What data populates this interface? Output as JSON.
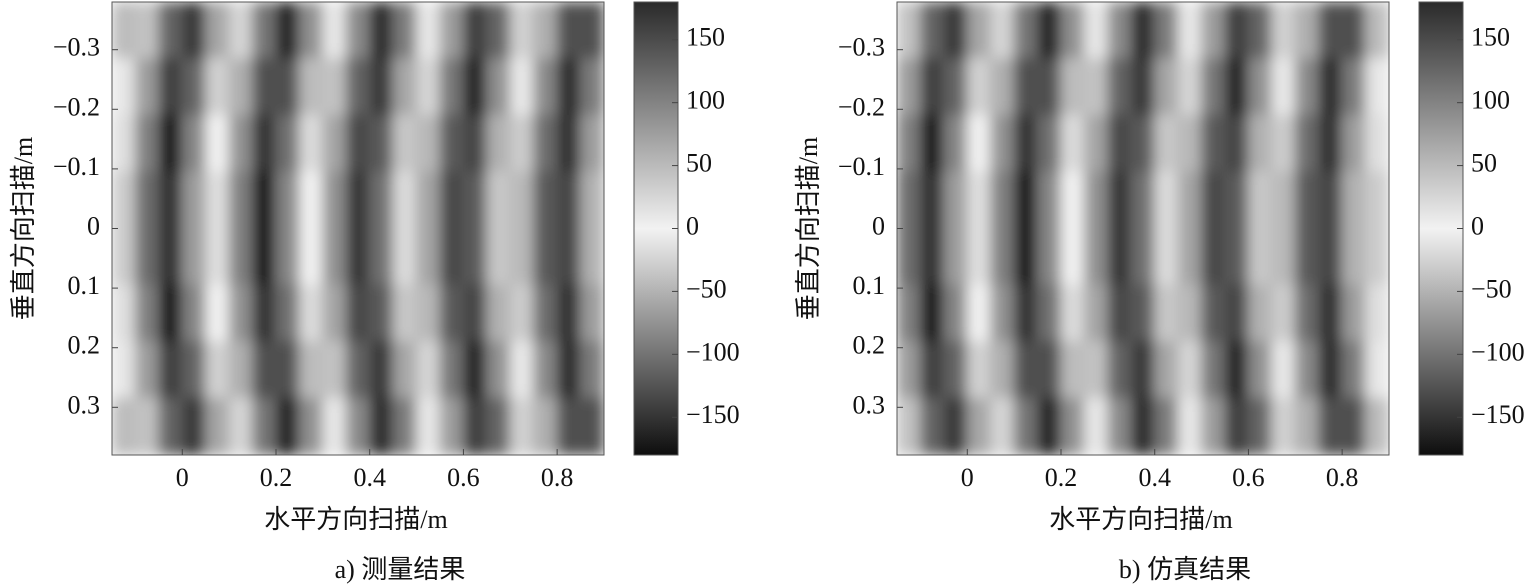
{
  "chart_data": [
    {
      "type": "heatmap",
      "caption": "a) 测量结果",
      "x_label": "水平方向扫描/m",
      "y_label": "垂直方向扫描/m",
      "x": [
        -0.125,
        -0.075,
        -0.025,
        0.025,
        0.075,
        0.125,
        0.175,
        0.225,
        0.275,
        0.325,
        0.375,
        0.425,
        0.475,
        0.525,
        0.575,
        0.625,
        0.675,
        0.725,
        0.775,
        0.825,
        0.875
      ],
      "y": [
        -0.3325,
        -0.2375,
        -0.1425,
        -0.0475,
        0.0475,
        0.1425,
        0.2375,
        0.3325
      ],
      "z": [
        [
          -43,
          43,
          129,
          -146,
          -60,
          26,
          112,
          -163,
          -77,
          9,
          94,
          180,
          -94,
          -8,
          77,
          163,
          -111,
          -26,
          60,
          146,
          -128
        ],
        [
          -9,
          77,
          163,
          -112,
          -26,
          60,
          146,
          -129,
          -43,
          43,
          128,
          -146,
          -60,
          26,
          111,
          -163,
          -77,
          8,
          94,
          180,
          -94
        ],
        [
          17,
          103,
          -171,
          -86,
          0,
          86,
          172,
          -103,
          -17,
          69,
          154,
          -120,
          -34,
          52,
          137,
          -137,
          -51,
          34,
          120,
          -154,
          -68
        ],
        [
          34,
          120,
          -154,
          -69,
          17,
          103,
          -171,
          -86,
          0,
          86,
          171,
          -103,
          -17,
          69,
          154,
          -120,
          -34,
          51,
          137,
          -137,
          -51
        ],
        [
          34,
          120,
          -154,
          -69,
          17,
          103,
          -171,
          -86,
          0,
          86,
          171,
          -103,
          -17,
          69,
          154,
          -120,
          -34,
          51,
          137,
          -137,
          -51
        ],
        [
          17,
          103,
          -171,
          -86,
          0,
          86,
          172,
          -103,
          -17,
          69,
          154,
          -120,
          -34,
          52,
          137,
          -137,
          -51,
          34,
          120,
          -154,
          -68
        ],
        [
          -9,
          77,
          163,
          -112,
          -26,
          60,
          146,
          -129,
          -43,
          43,
          128,
          -146,
          -60,
          26,
          111,
          -163,
          -77,
          8,
          94,
          180,
          -94
        ],
        [
          -43,
          43,
          129,
          -146,
          -60,
          26,
          112,
          -163,
          -77,
          9,
          94,
          180,
          -94,
          -8,
          77,
          163,
          -111,
          -26,
          60,
          146,
          -128
        ]
      ],
      "xlim": [
        -0.15,
        0.9
      ],
      "ylim": [
        -0.38,
        0.38
      ],
      "xticks": [
        0,
        0.2,
        0.4,
        0.6,
        0.8
      ],
      "yticks": [
        {
          "value": -0.3,
          "label": "−0.3"
        },
        {
          "value": -0.2,
          "label": "−0.2"
        },
        {
          "value": -0.1,
          "label": "−0.1"
        },
        0,
        0.1,
        0.2,
        0.3
      ],
      "clim": [
        -180,
        180
      ],
      "cticks": [
        {
          "value": -150,
          "label": "−150"
        },
        {
          "value": -100,
          "label": "−100"
        },
        {
          "value": -50,
          "label": "−50"
        },
        0,
        50,
        100,
        150
      ],
      "colormap": [
        "#0e0e0e",
        "#f2f2f2",
        "#2a2a2a"
      ]
    },
    {
      "type": "heatmap",
      "caption": "b) 仿真结果",
      "x_label": "水平方向扫描/m",
      "y_label": "垂直方向扫描/m",
      "x": [
        -0.125,
        -0.075,
        -0.025,
        0.025,
        0.075,
        0.125,
        0.175,
        0.225,
        0.275,
        0.325,
        0.375,
        0.425,
        0.475,
        0.525,
        0.575,
        0.625,
        0.675,
        0.725,
        0.775,
        0.825,
        0.875
      ],
      "y": [
        -0.3325,
        -0.2375,
        -0.1425,
        -0.0475,
        0.0475,
        0.1425,
        0.2375,
        0.3325
      ],
      "z": [
        [
          43,
          129,
          -146,
          -60,
          26,
          112,
          -163,
          -77,
          9,
          94,
          180,
          -94,
          -8,
          77,
          163,
          -111,
          -26,
          60,
          146,
          -128,
          -43
        ],
        [
          77,
          163,
          -112,
          -26,
          60,
          146,
          -129,
          -43,
          43,
          128,
          -146,
          -60,
          26,
          111,
          -163,
          -77,
          8,
          94,
          180,
          -94,
          -9
        ],
        [
          103,
          -171,
          -86,
          0,
          86,
          172,
          -103,
          -17,
          69,
          154,
          -120,
          -34,
          52,
          137,
          -137,
          -51,
          34,
          120,
          -154,
          -68,
          17
        ],
        [
          120,
          -154,
          -69,
          17,
          103,
          -171,
          -86,
          0,
          86,
          171,
          -103,
          -17,
          69,
          154,
          -120,
          -34,
          51,
          137,
          -137,
          -51,
          34
        ],
        [
          120,
          -154,
          -69,
          17,
          103,
          -171,
          -86,
          0,
          86,
          171,
          -103,
          -17,
          69,
          154,
          -120,
          -34,
          51,
          137,
          -137,
          -51,
          34
        ],
        [
          103,
          -171,
          -86,
          0,
          86,
          172,
          -103,
          -17,
          69,
          154,
          -120,
          -34,
          52,
          137,
          -137,
          -51,
          34,
          120,
          -154,
          -68,
          17
        ],
        [
          77,
          163,
          -112,
          -26,
          60,
          146,
          -129,
          -43,
          43,
          128,
          -146,
          -60,
          26,
          111,
          -163,
          -77,
          8,
          94,
          180,
          -94,
          -9
        ],
        [
          43,
          129,
          -146,
          -60,
          26,
          112,
          -163,
          -77,
          9,
          94,
          180,
          -94,
          -8,
          77,
          163,
          -111,
          -26,
          60,
          146,
          -128,
          -43
        ]
      ],
      "xlim": [
        -0.15,
        0.9
      ],
      "ylim": [
        -0.38,
        0.38
      ],
      "xticks": [
        0,
        0.2,
        0.4,
        0.6,
        0.8
      ],
      "yticks": [
        {
          "value": -0.3,
          "label": "−0.3"
        },
        {
          "value": -0.2,
          "label": "−0.2"
        },
        {
          "value": -0.1,
          "label": "−0.1"
        },
        0,
        0.1,
        0.2,
        0.3
      ],
      "clim": [
        -180,
        180
      ],
      "cticks": [
        {
          "value": -150,
          "label": "−150"
        },
        {
          "value": -100,
          "label": "−100"
        },
        {
          "value": -50,
          "label": "−50"
        },
        0,
        50,
        100,
        150
      ],
      "colormap": [
        "#0e0e0e",
        "#f2f2f2",
        "#2a2a2a"
      ]
    }
  ]
}
